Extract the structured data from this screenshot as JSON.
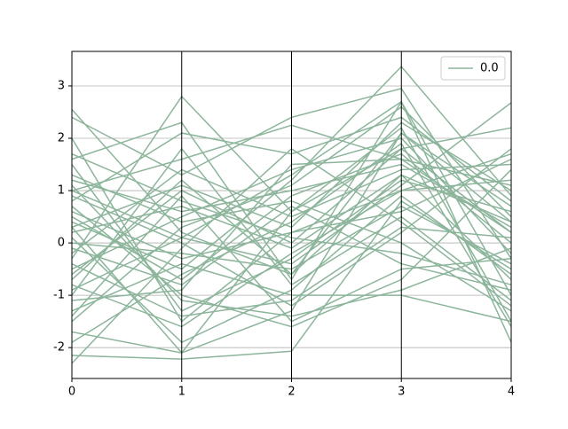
{
  "chart_data": {
    "type": "parallel",
    "x": [
      0,
      1,
      2,
      3,
      4
    ],
    "xlim": [
      0,
      4
    ],
    "xticks": [
      0,
      1,
      2,
      3,
      4
    ],
    "ylim": [
      -2.59,
      3.66
    ],
    "yticks": [
      -2,
      -1,
      0,
      1,
      2,
      3
    ],
    "grid": true,
    "legend": "upper right",
    "series": [
      {
        "name": "0.0",
        "color": "#8cb59b",
        "values": [
          [
            -2.15,
            -2.22,
            -2.07,
            0.8,
            -0.5
          ],
          [
            2.55,
            0.2,
            -0.6,
            1.3,
            0.4
          ],
          [
            -0.3,
            2.8,
            0.6,
            2.2,
            -1.5
          ],
          [
            0.4,
            -0.5,
            1.2,
            3.37,
            0.9
          ],
          [
            -0.9,
            0.1,
            -0.4,
            1.1,
            2.68
          ],
          [
            2.4,
            1.3,
            2.4,
            2.95,
            -0.3
          ],
          [
            2.0,
            -1.5,
            0.2,
            0.6,
            1.6
          ],
          [
            1.6,
            2.3,
            -0.7,
            2.7,
            -1.9
          ],
          [
            1.0,
            1.6,
            2.25,
            1.6,
            0.2
          ],
          [
            -1.7,
            -2.1,
            -1.3,
            2.1,
            0.7
          ],
          [
            -2.3,
            -0.1,
            1.8,
            0.4,
            -1.2
          ],
          [
            0.7,
            -1.0,
            -1.6,
            -0.7,
            1.4
          ],
          [
            -0.6,
            1.0,
            0.0,
            1.8,
            2.2
          ],
          [
            0.1,
            -1.9,
            -0.9,
            0.9,
            -0.6
          ],
          [
            1.2,
            0.6,
            1.0,
            1.5,
            0.3
          ],
          [
            -1.3,
            -0.4,
            -1.0,
            -1.0,
            -1.5
          ],
          [
            0.3,
            1.1,
            0.3,
            2.3,
            1.0
          ],
          [
            -0.1,
            -0.8,
            0.7,
            -0.4,
            -0.9
          ],
          [
            0.9,
            0.0,
            -1.2,
            0.2,
            1.8
          ],
          [
            -0.5,
            0.5,
            1.4,
            2.0,
            -0.2
          ],
          [
            1.5,
            -1.3,
            -0.3,
            1.2,
            0.6
          ],
          [
            -1.0,
            1.8,
            -0.8,
            0.5,
            -1.1
          ],
          [
            0.5,
            -0.7,
            0.9,
            1.7,
            0.0
          ],
          [
            -0.8,
            -1.6,
            -0.2,
            1.0,
            1.2
          ],
          [
            1.7,
            0.8,
            0.1,
            -0.2,
            -0.8
          ],
          [
            -1.5,
            0.3,
            1.1,
            2.6,
            0.5
          ],
          [
            0.0,
            -0.2,
            -0.5,
            0.7,
            -0.4
          ],
          [
            -0.2,
            1.4,
            0.5,
            1.4,
            1.5
          ],
          [
            1.1,
            -1.1,
            -1.4,
            -0.9,
            -0.1
          ],
          [
            -1.9,
            -0.6,
            0.4,
            1.9,
            -1.6
          ],
          [
            0.8,
            2.1,
            1.7,
            2.4,
            0.8
          ],
          [
            -0.4,
            -1.4,
            -1.1,
            0.3,
            0.1
          ],
          [
            0.2,
            0.7,
            -0.1,
            1.3,
            -0.7
          ],
          [
            -1.1,
            -0.9,
            1.5,
            1.6,
            1.1
          ],
          [
            1.3,
            0.4,
            0.8,
            0.0,
            -1.3
          ],
          [
            -0.7,
            1.2,
            -0.6,
            2.1,
            0.4
          ],
          [
            0.6,
            -0.3,
            0.2,
            1.0,
            1.7
          ],
          [
            -1.4,
            0.9,
            -1.5,
            -0.5,
            -0.3
          ],
          [
            0.3,
            -2.1,
            0.6,
            1.8,
            0.2
          ],
          [
            1.0,
            0.1,
            1.3,
            2.7,
            -1.0
          ]
        ]
      }
    ]
  }
}
